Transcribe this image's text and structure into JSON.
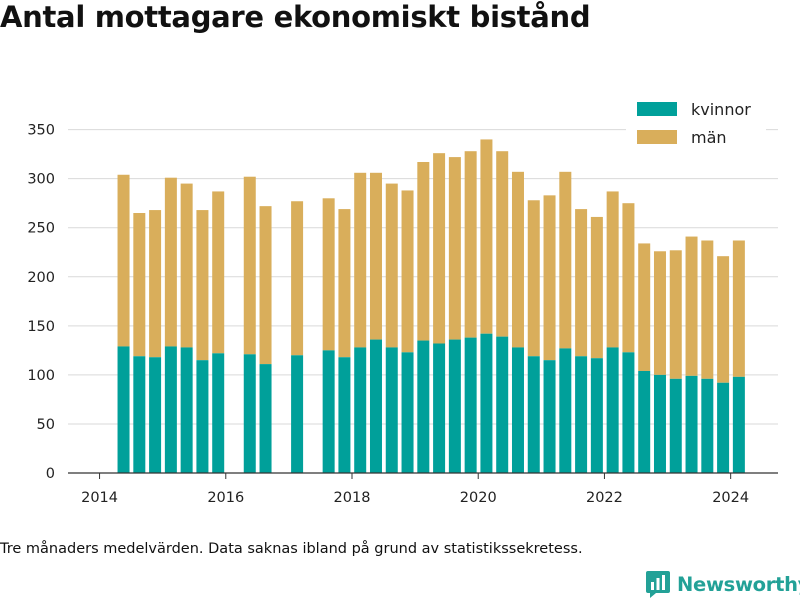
{
  "title": "Antal mottagare ekonomiskt bistånd",
  "note": "Tre månaders medelvärden. Data saknas ibland på grund av statistikssekretess.",
  "brand": {
    "name": "Newsworthy",
    "icon": "newsworthy-logo-icon",
    "color": "#23a197"
  },
  "colors": {
    "kvinnor": "#00a09a",
    "man": "#d9ae5b",
    "grid": "#d9d9d9",
    "axis": "#333333"
  },
  "chart_data": {
    "type": "bar",
    "stacked": true,
    "title": "Antal mottagare ekonomiskt bistånd",
    "xlabel": "",
    "ylabel": "",
    "x_ticks": [
      2014,
      2016,
      2018,
      2020,
      2022,
      2024
    ],
    "y_ticks": [
      0,
      50,
      100,
      150,
      200,
      250,
      300,
      350
    ],
    "xlim": [
      2013.5,
      2024.75
    ],
    "ylim": [
      0,
      370
    ],
    "grid": true,
    "legend_position": "top-right",
    "x": [
      2014.38,
      2014.63,
      2014.88,
      2015.13,
      2015.38,
      2015.63,
      2015.88,
      2016.38,
      2016.63,
      2017.13,
      2017.63,
      2017.88,
      2018.13,
      2018.38,
      2018.63,
      2018.88,
      2019.13,
      2019.38,
      2019.63,
      2019.88,
      2020.13,
      2020.38,
      2020.63,
      2020.88,
      2021.13,
      2021.38,
      2021.63,
      2021.88,
      2022.13,
      2022.38,
      2022.63,
      2022.88,
      2023.13,
      2023.38,
      2023.63,
      2023.88,
      2024.13
    ],
    "series": [
      {
        "name": "kvinnor",
        "color": "#00a09a",
        "values": [
          129,
          119,
          118,
          129,
          128,
          115,
          122,
          121,
          111,
          120,
          125,
          118,
          128,
          136,
          128,
          123,
          135,
          132,
          136,
          138,
          142,
          139,
          128,
          119,
          115,
          127,
          119,
          117,
          128,
          123,
          104,
          100,
          96,
          99,
          96,
          92,
          98
        ]
      },
      {
        "name": "män",
        "color": "#d9ae5b",
        "values": [
          175,
          146,
          150,
          172,
          167,
          153,
          165,
          181,
          161,
          157,
          155,
          151,
          178,
          170,
          167,
          165,
          182,
          194,
          186,
          190,
          198,
          189,
          179,
          159,
          168,
          180,
          150,
          144,
          159,
          152,
          130,
          126,
          131,
          142,
          141,
          129,
          139
        ]
      }
    ]
  }
}
